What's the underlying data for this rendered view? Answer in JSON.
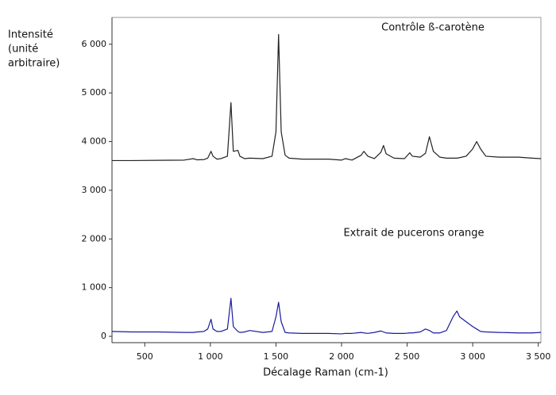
{
  "chart_data": {
    "type": "line",
    "y_label": [
      "Intensité",
      "(unité",
      "arbitraire)"
    ],
    "x_label": "Décalage Raman (cm-1)",
    "annotations": [
      "Contrôle ß-carotène",
      "Extrait de pucerons orange"
    ],
    "x": [
      250,
      400,
      600,
      800,
      870,
      900,
      950,
      980,
      1005,
      1020,
      1050,
      1080,
      1130,
      1157,
      1175,
      1210,
      1225,
      1260,
      1300,
      1400,
      1470,
      1500,
      1520,
      1540,
      1570,
      1600,
      1700,
      1800,
      1900,
      2000,
      2030,
      2080,
      2150,
      2170,
      2200,
      2250,
      2300,
      2320,
      2340,
      2400,
      2480,
      2520,
      2540,
      2600,
      2640,
      2670,
      2700,
      2750,
      2800,
      2850,
      2880,
      2900,
      2950,
      3000,
      3030,
      3060,
      3100,
      3200,
      3350,
      3450,
      3520
    ],
    "series": [
      {
        "color": "#222222",
        "values": [
          3610,
          3610,
          3615,
          3620,
          3650,
          3625,
          3630,
          3660,
          3800,
          3700,
          3640,
          3650,
          3700,
          4800,
          3800,
          3820,
          3700,
          3650,
          3660,
          3650,
          3700,
          4200,
          6200,
          4200,
          3720,
          3660,
          3640,
          3640,
          3640,
          3620,
          3650,
          3620,
          3720,
          3800,
          3700,
          3650,
          3780,
          3920,
          3750,
          3660,
          3650,
          3770,
          3700,
          3680,
          3760,
          4100,
          3800,
          3680,
          3660,
          3660,
          3660,
          3670,
          3700,
          3850,
          4000,
          3850,
          3700,
          3680,
          3680,
          3660,
          3650
        ]
      },
      {
        "color": "#1a1aa0",
        "values": [
          100,
          90,
          90,
          80,
          80,
          90,
          100,
          150,
          350,
          150,
          100,
          100,
          150,
          780,
          200,
          100,
          80,
          90,
          120,
          80,
          100,
          400,
          700,
          300,
          80,
          70,
          60,
          60,
          60,
          50,
          60,
          60,
          80,
          70,
          60,
          80,
          110,
          90,
          70,
          60,
          60,
          70,
          70,
          90,
          150,
          120,
          70,
          70,
          120,
          400,
          520,
          400,
          300,
          200,
          150,
          100,
          90,
          80,
          70,
          70,
          80
        ]
      }
    ],
    "xlim": [
      250,
      3520
    ],
    "ylim": [
      -130,
      6550
    ],
    "xticks": [
      500,
      {
        "value": 1000,
        "label": "1 000"
      },
      {
        "value": 1500,
        "label": "1 500"
      },
      {
        "value": 2000,
        "label": "2 000"
      },
      {
        "value": 2500,
        "label": "2 500"
      },
      {
        "value": 3000,
        "label": "3 000"
      },
      {
        "value": 3500,
        "label": "3 500"
      }
    ],
    "yticks": [
      0,
      {
        "value": 1000,
        "label": "1 000"
      },
      {
        "value": 2000,
        "label": "2 000"
      },
      {
        "value": 3000,
        "label": "3 000"
      },
      {
        "value": 4000,
        "label": "4 000"
      },
      {
        "value": 5000,
        "label": "5 000"
      },
      {
        "value": 6000,
        "label": "6 000"
      }
    ],
    "grid": false
  }
}
